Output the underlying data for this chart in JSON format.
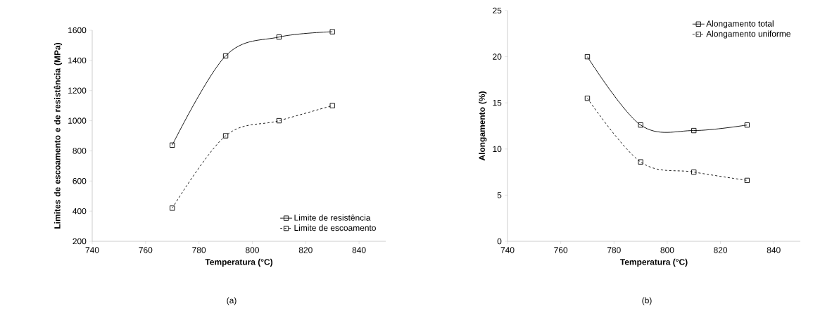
{
  "chart_data": [
    {
      "type": "line",
      "xlabel": "Temperatura (°C)",
      "ylabel": "Limites de escoamento e de resistência (MPa)",
      "annotations": [
        "(a)"
      ],
      "x": [
        770,
        790,
        810,
        830
      ],
      "xlim": [
        740,
        850
      ],
      "xticks": [
        740,
        760,
        780,
        800,
        820,
        840
      ],
      "ylim": [
        200,
        1600
      ],
      "yticks": [
        200,
        400,
        600,
        800,
        1000,
        1200,
        1400,
        1600
      ],
      "marker": "square",
      "grid": false,
      "legend": "bottom right",
      "series": [
        {
          "name": "Limite de resistência",
          "color": "#000000",
          "line_style": "solid",
          "values": [
            838,
            1430,
            1555,
            1590
          ]
        },
        {
          "name": "Limite de escoamento",
          "color": "#000000",
          "line_style": "dashed",
          "values": [
            420,
            900,
            1000,
            1100
          ]
        }
      ]
    },
    {
      "type": "line",
      "xlabel": "Temperatura (°C)",
      "ylabel": "Alongamento (%)",
      "annotations": [
        "(b)"
      ],
      "x": [
        770,
        790,
        810,
        830
      ],
      "xlim": [
        740,
        850
      ],
      "xticks": [
        740,
        760,
        780,
        800,
        820,
        840
      ],
      "ylim": [
        0,
        25
      ],
      "yticks": [
        0,
        5,
        10,
        15,
        20,
        25
      ],
      "marker": "square",
      "grid": false,
      "legend": "top right",
      "series": [
        {
          "name": "Alongamento total",
          "color": "#000000",
          "line_style": "solid",
          "values": [
            20,
            12.6,
            12.0,
            12.6
          ]
        },
        {
          "name": "Alongamento uniforme",
          "color": "#000000",
          "line_style": "dashed",
          "values": [
            15.5,
            8.6,
            7.5,
            6.6
          ]
        }
      ]
    }
  ]
}
